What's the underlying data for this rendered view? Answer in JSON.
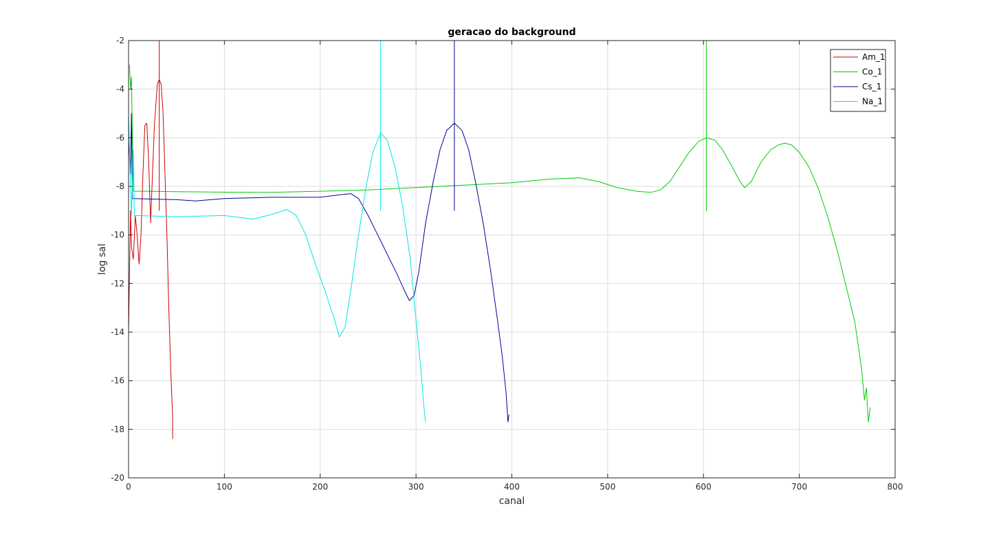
{
  "chart_data": {
    "type": "line",
    "title": "geracao do background",
    "xlabel": "canal",
    "ylabel": "log sal",
    "xlim": [
      0,
      800
    ],
    "ylim": [
      -20,
      -2
    ],
    "xticks": [
      0,
      100,
      200,
      300,
      400,
      500,
      600,
      700,
      800
    ],
    "yticks": [
      -20,
      -18,
      -16,
      -14,
      -12,
      -10,
      -8,
      -6,
      -4,
      -2
    ],
    "grid": true,
    "legend_position": "top-right",
    "series": [
      {
        "name": "Co_1",
        "color": "#00cc00",
        "points": [
          [
            1,
            -3
          ],
          [
            2,
            -4
          ],
          [
            3,
            -3.5
          ],
          [
            4,
            -6
          ],
          [
            5,
            -8.2
          ],
          [
            20,
            -8.2
          ],
          [
            50,
            -8.22
          ],
          [
            100,
            -8.24
          ],
          [
            150,
            -8.25
          ],
          [
            200,
            -8.2
          ],
          [
            250,
            -8.15
          ],
          [
            300,
            -8.05
          ],
          [
            350,
            -7.95
          ],
          [
            400,
            -7.85
          ],
          [
            440,
            -7.7
          ],
          [
            470,
            -7.65
          ],
          [
            490,
            -7.8
          ],
          [
            510,
            -8.05
          ],
          [
            530,
            -8.2
          ],
          [
            545,
            -8.25
          ],
          [
            555,
            -8.15
          ],
          [
            565,
            -7.8
          ],
          [
            575,
            -7.2
          ],
          [
            585,
            -6.6
          ],
          [
            595,
            -6.15
          ],
          [
            603,
            -6.0
          ],
          [
            603,
            -2
          ],
          [
            603,
            -9
          ],
          [
            603,
            -6.0
          ],
          [
            612,
            -6.1
          ],
          [
            620,
            -6.5
          ],
          [
            630,
            -7.2
          ],
          [
            638,
            -7.8
          ],
          [
            643,
            -8.05
          ],
          [
            650,
            -7.8
          ],
          [
            660,
            -7.0
          ],
          [
            670,
            -6.5
          ],
          [
            678,
            -6.3
          ],
          [
            685,
            -6.22
          ],
          [
            692,
            -6.3
          ],
          [
            700,
            -6.6
          ],
          [
            710,
            -7.2
          ],
          [
            720,
            -8.1
          ],
          [
            730,
            -9.3
          ],
          [
            740,
            -10.7
          ],
          [
            750,
            -12.3
          ],
          [
            758,
            -13.6
          ],
          [
            765,
            -15.5
          ],
          [
            768,
            -16.8
          ],
          [
            770,
            -16.3
          ],
          [
            772,
            -17.7
          ],
          [
            774,
            -17.1
          ]
        ]
      },
      {
        "name": "Am_1",
        "color": "#cc0000",
        "points": [
          [
            0,
            -14
          ],
          [
            2,
            -9
          ],
          [
            3,
            -10.5
          ],
          [
            5,
            -11
          ],
          [
            7,
            -9.2
          ],
          [
            9,
            -10
          ],
          [
            11,
            -11.2
          ],
          [
            13,
            -10
          ],
          [
            15,
            -7.5
          ],
          [
            17,
            -5.5
          ],
          [
            19,
            -5.4
          ],
          [
            21,
            -7
          ],
          [
            23,
            -9.5
          ],
          [
            25,
            -7.5
          ],
          [
            27,
            -5.5
          ],
          [
            30,
            -3.8
          ],
          [
            32,
            -3.6
          ],
          [
            32,
            -2
          ],
          [
            32,
            -9
          ],
          [
            32,
            -3.6
          ],
          [
            34,
            -3.8
          ],
          [
            36,
            -5
          ],
          [
            38,
            -7.5
          ],
          [
            40,
            -10
          ],
          [
            42,
            -13
          ],
          [
            44,
            -15.5
          ],
          [
            46,
            -17.5
          ],
          [
            46,
            -18.4
          ]
        ]
      },
      {
        "name": "Cs_1",
        "color": "#000099",
        "points": [
          [
            0,
            -6
          ],
          [
            2,
            -7.5
          ],
          [
            3,
            -5
          ],
          [
            4,
            -8.5
          ],
          [
            50,
            -8.55
          ],
          [
            70,
            -8.6
          ],
          [
            100,
            -8.5
          ],
          [
            150,
            -8.45
          ],
          [
            200,
            -8.45
          ],
          [
            220,
            -8.35
          ],
          [
            232,
            -8.3
          ],
          [
            240,
            -8.5
          ],
          [
            250,
            -9.2
          ],
          [
            260,
            -10
          ],
          [
            270,
            -10.8
          ],
          [
            280,
            -11.6
          ],
          [
            288,
            -12.3
          ],
          [
            293,
            -12.7
          ],
          [
            298,
            -12.5
          ],
          [
            303,
            -11.5
          ],
          [
            310,
            -9.5
          ],
          [
            318,
            -7.8
          ],
          [
            325,
            -6.5
          ],
          [
            332,
            -5.7
          ],
          [
            340,
            -5.4
          ],
          [
            340,
            -2
          ],
          [
            340,
            -9
          ],
          [
            340,
            -5.4
          ],
          [
            348,
            -5.7
          ],
          [
            355,
            -6.5
          ],
          [
            362,
            -7.8
          ],
          [
            370,
            -9.5
          ],
          [
            378,
            -11.5
          ],
          [
            385,
            -13.5
          ],
          [
            390,
            -15
          ],
          [
            394,
            -16.5
          ],
          [
            396,
            -17.7
          ],
          [
            397,
            -17.4
          ]
        ]
      },
      {
        "name": "Na_1",
        "color": "#00e5e5",
        "points": [
          [
            0,
            -5
          ],
          [
            2,
            -8
          ],
          [
            3,
            -9.2
          ],
          [
            5,
            -6.5
          ],
          [
            6,
            -9.2
          ],
          [
            50,
            -9.25
          ],
          [
            100,
            -9.2
          ],
          [
            130,
            -9.35
          ],
          [
            150,
            -9.15
          ],
          [
            165,
            -8.95
          ],
          [
            175,
            -9.2
          ],
          [
            185,
            -10
          ],
          [
            195,
            -11.2
          ],
          [
            205,
            -12.3
          ],
          [
            215,
            -13.5
          ],
          [
            220,
            -14.2
          ],
          [
            226,
            -13.8
          ],
          [
            233,
            -12
          ],
          [
            240,
            -10
          ],
          [
            248,
            -8
          ],
          [
            255,
            -6.6
          ],
          [
            263,
            -5.8
          ],
          [
            263,
            -2
          ],
          [
            263,
            -9
          ],
          [
            263,
            -5.8
          ],
          [
            270,
            -6.1
          ],
          [
            278,
            -7.2
          ],
          [
            286,
            -8.8
          ],
          [
            294,
            -11
          ],
          [
            300,
            -13.5
          ],
          [
            305,
            -15.5
          ],
          [
            308,
            -17
          ],
          [
            310,
            -17.7
          ]
        ]
      }
    ],
    "legend": [
      "Am_1",
      "Co_1",
      "Cs_1",
      "Na_1"
    ]
  }
}
